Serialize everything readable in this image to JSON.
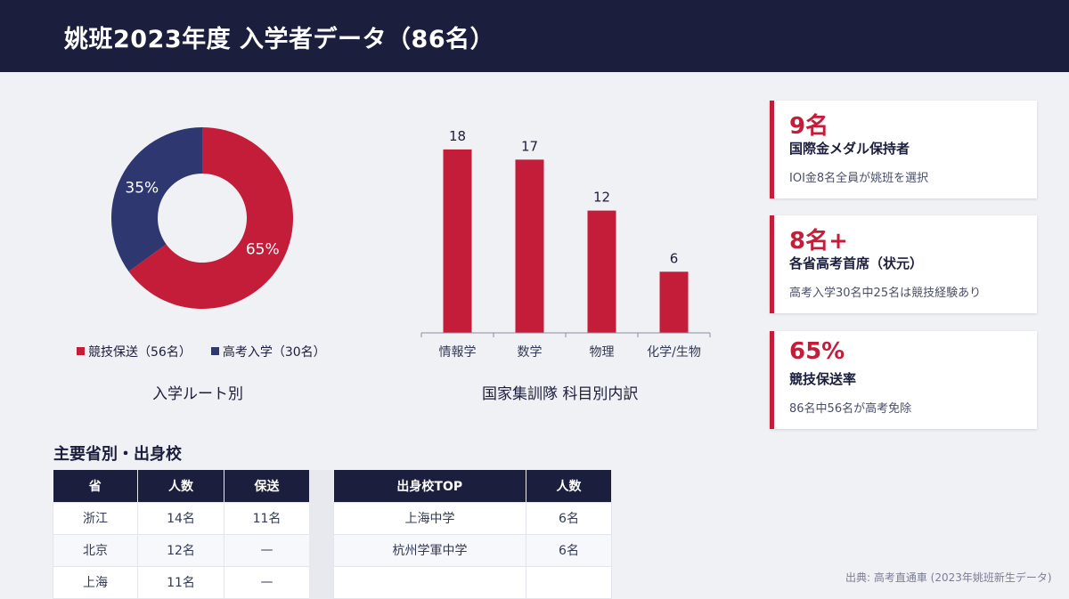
{
  "header": {
    "title": "姚班2023年度 入学者データ（86名）"
  },
  "colors": {
    "accent": "#c41d3a",
    "navy": "#2e3770",
    "dark": "#1b1e3c"
  },
  "chart_data": [
    {
      "type": "pie",
      "categories": [
        "競技保送（56名）",
        "高考入学（30名）"
      ],
      "values": [
        65,
        35
      ],
      "value_labels": [
        "65%",
        "35%"
      ],
      "colors": [
        "#c41d3a",
        "#2e3770"
      ],
      "title": "入学ルート別",
      "legend": "bottom"
    },
    {
      "type": "bar",
      "categories": [
        "情報学",
        "数学",
        "物理",
        "化学/生物"
      ],
      "values": [
        18,
        17,
        12,
        6
      ],
      "title": "国家集訓隊 科目別内訳",
      "ylim": [
        0,
        20
      ],
      "color": "#c41d3a",
      "grid": false
    }
  ],
  "kpis": [
    {
      "value": "9名",
      "title": "国際金メダル保持者",
      "note": "IOI金8名全員が姚班を選択"
    },
    {
      "value": "8名+",
      "title": "各省高考首席（状元）",
      "note": "高考入学30名中25名は競技経験あり"
    },
    {
      "value": "65%",
      "title": "競技保送率",
      "note": "86名中56名が高考免除"
    }
  ],
  "tables": {
    "title": "主要省別・出身校",
    "province": {
      "headers": [
        "省",
        "人数",
        "保送"
      ],
      "rows": [
        [
          "浙江",
          "14名",
          "11名"
        ],
        [
          "北京",
          "12名",
          "—"
        ],
        [
          "上海",
          "11名",
          "—"
        ]
      ]
    },
    "school": {
      "headers": [
        "出身校TOP",
        "人数"
      ],
      "rows": [
        [
          "上海中学",
          "6名"
        ],
        [
          "杭州学軍中学",
          "6名"
        ],
        [
          "",
          ""
        ]
      ]
    }
  },
  "source": "出典: 高考直通車 (2023年姚班新生データ)"
}
